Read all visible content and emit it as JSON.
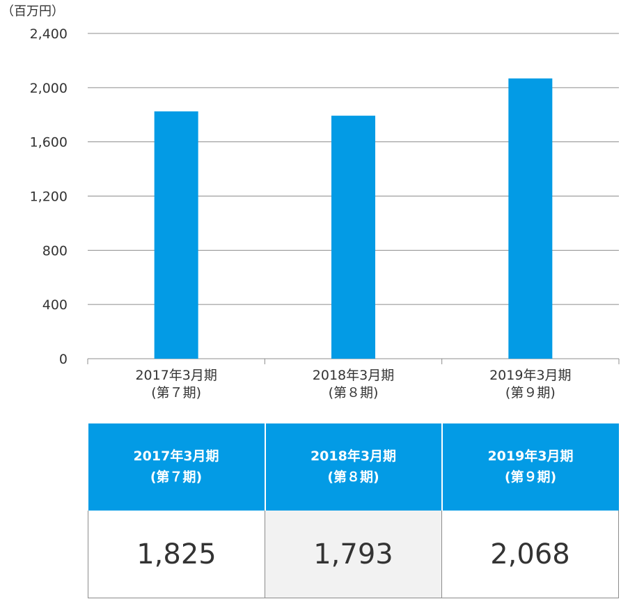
{
  "unit_label": "（百万円）",
  "colors": {
    "bar": "#039be5",
    "table_header": "#039be5",
    "grid": "#8c8c8c",
    "text": "#333333"
  },
  "chart_data": {
    "type": "bar",
    "categories": [
      [
        "2017年3月期",
        "(第７期)"
      ],
      [
        "2018年3月期",
        "(第８期)"
      ],
      [
        "2019年3月期",
        "(第９期)"
      ]
    ],
    "values": [
      1825,
      1793,
      2068
    ],
    "ylim": [
      0,
      2400
    ],
    "yticks": [
      0,
      400,
      800,
      1200,
      1600,
      2000,
      2400
    ],
    "ytick_labels": [
      "0",
      "400",
      "800",
      "1,200",
      "1,600",
      "2,000",
      "2,400"
    ],
    "grid": true
  },
  "table": {
    "headers": [
      {
        "period": "2017年3月期",
        "term": "(第７期)"
      },
      {
        "period": "2018年3月期",
        "term": "(第８期)"
      },
      {
        "period": "2019年3月期",
        "term": "(第９期)"
      }
    ],
    "values": [
      "1,825",
      "1,793",
      "2,068"
    ]
  }
}
